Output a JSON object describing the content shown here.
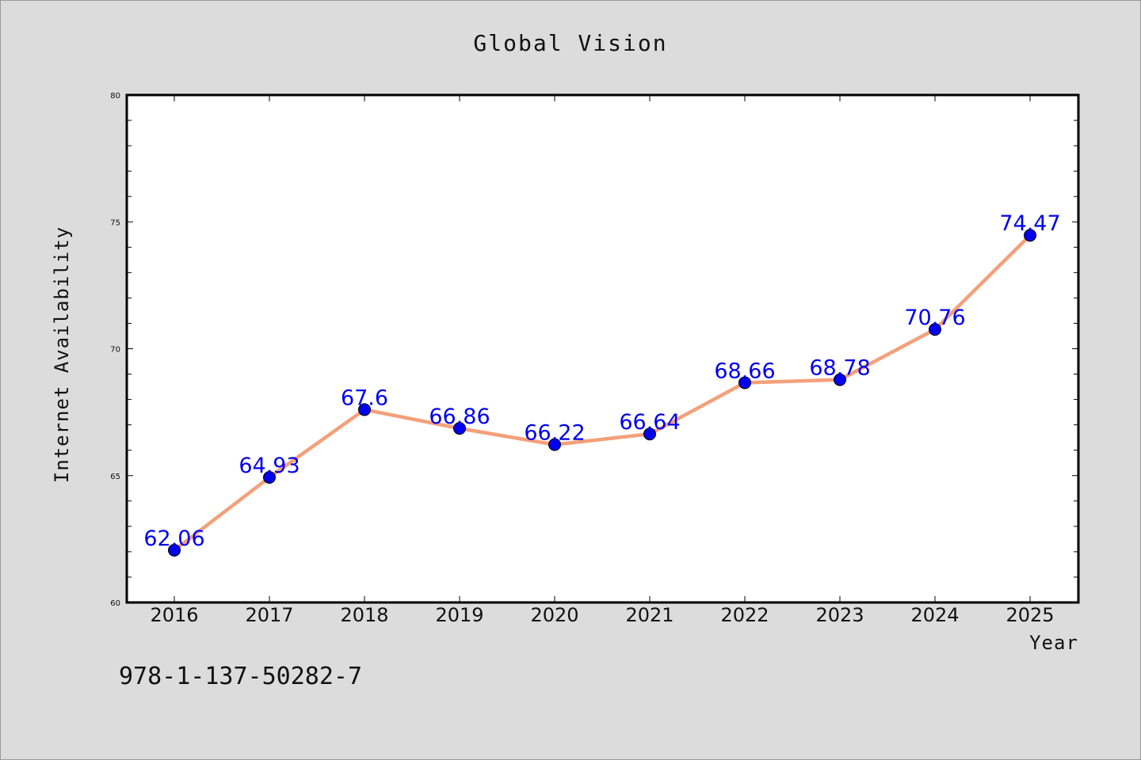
{
  "chart_data": {
    "type": "line",
    "title": "Global Vision",
    "xlabel": "Year",
    "ylabel": "Internet Availability",
    "categories": [
      "2016",
      "2017",
      "2018",
      "2019",
      "2020",
      "2021",
      "2022",
      "2023",
      "2024",
      "2025"
    ],
    "values": [
      62.06,
      64.93,
      67.6,
      66.86,
      66.22,
      66.64,
      68.66,
      68.78,
      70.76,
      74.47
    ],
    "data_labels": [
      "62.06",
      "64.93",
      "67.6",
      "66.86",
      "66.22",
      "66.64",
      "68.66",
      "68.78",
      "70.76",
      "74.47"
    ],
    "ylim": [
      60,
      80
    ],
    "yticks": [
      "60",
      "65",
      "70",
      "75",
      "80"
    ],
    "grid": false,
    "line_color": "#f4a07a",
    "marker_color": "#0000ee",
    "data_label_color": "#0000ee"
  },
  "footer": {
    "code": "978-1-137-50282-7"
  }
}
